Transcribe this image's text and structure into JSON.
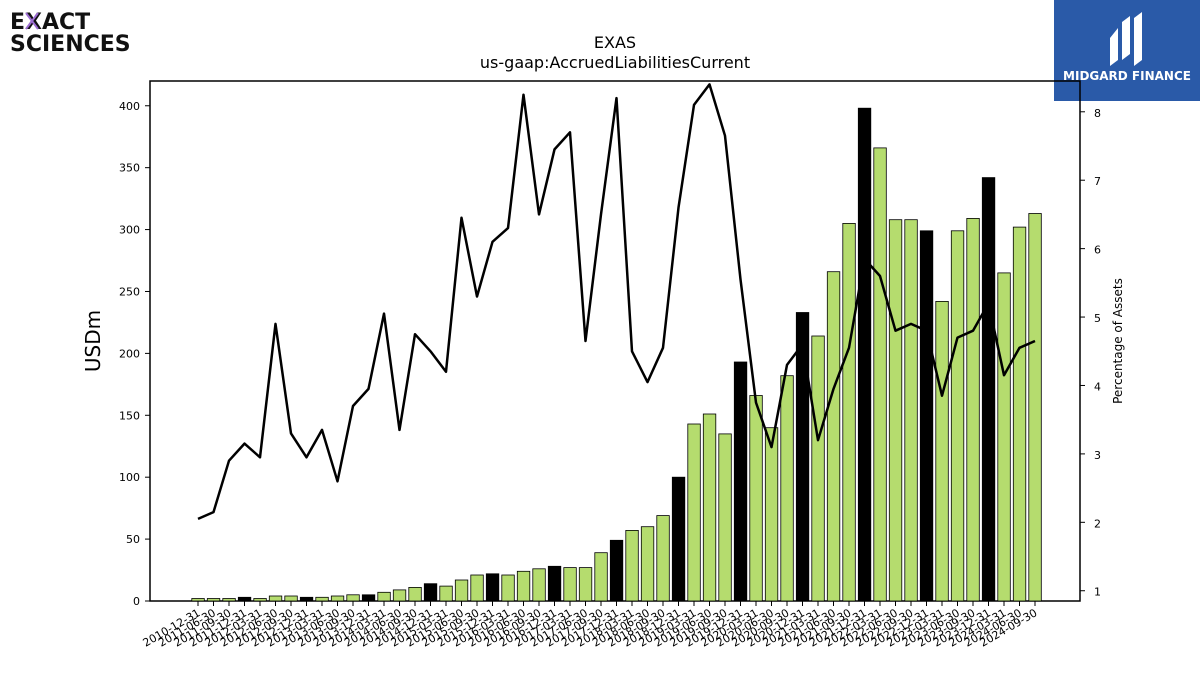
{
  "header": {
    "left_logo_line1": "EXACT",
    "left_logo_line2": "SCIENCES",
    "right_logo_text": "MIDGARD FINANCE"
  },
  "chart_data": {
    "type": "bar",
    "title": "EXAS",
    "subtitle": "us-gaap:AccruedLiabilitiesCurrent",
    "ylabel": "USDm",
    "y2label": "Percentage of Assets",
    "ylim": [
      0,
      420
    ],
    "y2lim": [
      0.85,
      8.45
    ],
    "yticks": [
      0,
      50,
      100,
      150,
      200,
      250,
      300,
      350,
      400
    ],
    "y2ticks": [
      1,
      2,
      3,
      4,
      5,
      6,
      7,
      8
    ],
    "colors": {
      "bar_default": "#b5dc6e",
      "bar_highlight": "#000000",
      "line": "#000000"
    },
    "categories": [
      "2010-12-31",
      "2011-06-30",
      "2011-09-30",
      "2011-12-31",
      "2012-03-31",
      "2012-06-30",
      "2012-09-30",
      "2012-12-31",
      "2013-03-31",
      "2013-06-30",
      "2013-09-30",
      "2013-12-31",
      "2014-03-31",
      "2014-06-30",
      "2014-09-30",
      "2014-12-31",
      "2015-03-31",
      "2015-06-30",
      "2015-09-30",
      "2015-12-31",
      "2016-03-31",
      "2016-06-30",
      "2016-09-30",
      "2016-12-31",
      "2017-03-31",
      "2017-06-30",
      "2017-09-30",
      "2017-12-31",
      "2018-03-31",
      "2018-06-30",
      "2018-09-30",
      "2018-12-31",
      "2019-03-31",
      "2019-06-30",
      "2019-09-30",
      "2019-12-31",
      "2020-03-31",
      "2020-06-30",
      "2020-09-30",
      "2020-12-31",
      "2021-03-31",
      "2021-06-30",
      "2021-09-30",
      "2021-12-31",
      "2022-03-31",
      "2022-06-30",
      "2022-09-30",
      "2022-12-31",
      "2023-03-31",
      "2023-06-30",
      "2023-09-30",
      "2023-12-31",
      "2024-03-31",
      "2024-06-30",
      "2024-09-30"
    ],
    "series": [
      {
        "kind": "bar",
        "values": [
          2,
          2,
          2,
          3,
          2,
          4,
          4,
          3,
          3,
          4,
          5,
          5,
          7,
          9,
          11,
          14,
          12,
          17,
          21,
          22,
          21,
          24,
          26,
          28,
          27,
          27,
          39,
          49,
          57,
          60,
          69,
          100,
          143,
          151,
          135,
          193,
          166,
          140,
          182,
          233,
          214,
          266,
          305,
          398,
          366,
          308,
          308,
          299,
          242,
          299,
          309,
          342,
          265,
          302,
          313
        ]
      },
      {
        "kind": "line",
        "values": [
          2.05,
          2.15,
          2.9,
          3.15,
          2.95,
          4.9,
          3.3,
          2.95,
          3.35,
          2.6,
          3.7,
          3.95,
          5.05,
          3.35,
          4.75,
          4.5,
          4.2,
          6.45,
          5.3,
          6.1,
          6.3,
          8.25,
          6.5,
          7.45,
          7.7,
          4.65,
          6.5,
          8.2,
          4.5,
          4.05,
          4.55,
          6.6,
          8.1,
          8.4,
          7.65,
          5.55,
          3.75,
          3.1,
          4.3,
          4.6,
          3.2,
          3.95,
          4.55,
          5.85,
          5.6,
          4.8,
          4.9,
          4.8,
          3.85,
          4.7,
          4.8,
          5.2,
          4.15,
          4.55,
          4.65
        ]
      }
    ],
    "highlight_indices": [
      3,
      7,
      11,
      15,
      19,
      23,
      27,
      31,
      35,
      39,
      43,
      47,
      51
    ]
  }
}
